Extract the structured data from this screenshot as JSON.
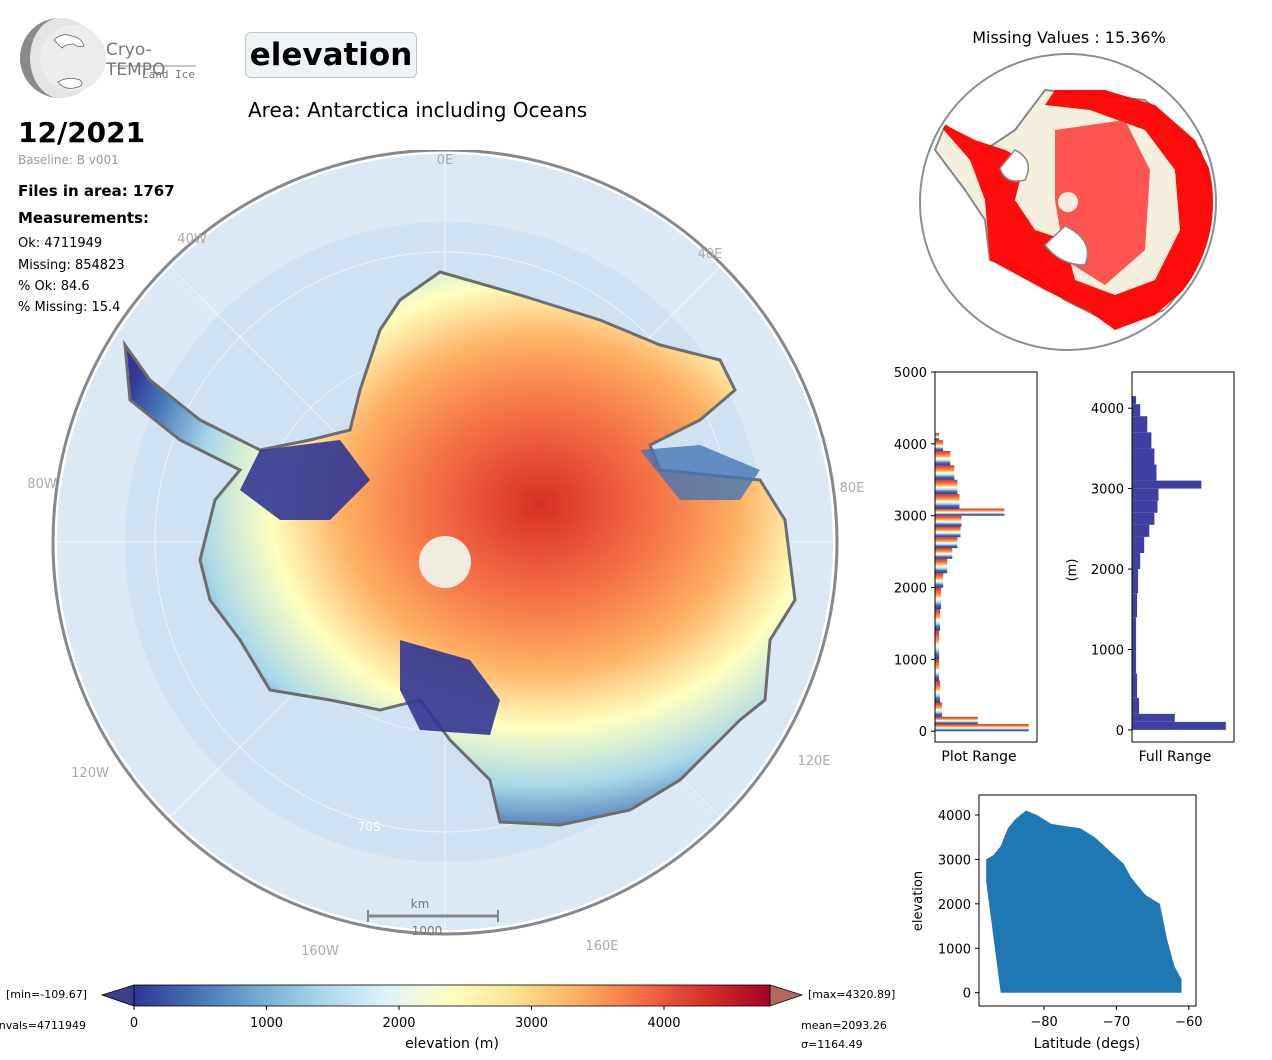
{
  "logo": {
    "brand": "Cryo-TEMPO",
    "subtitle": "Land Ice"
  },
  "parameter": "elevation",
  "area_title": "Area: Antarctica including Oceans",
  "date": "12/2021",
  "baseline": "Baseline: B v001",
  "files_in_area": "Files in area: 1767",
  "measurements_heading": "Measurements:",
  "stats": {
    "ok": "Ok: 4711949",
    "missing": "Missing: 854823",
    "pct_ok": "% Ok: 84.6",
    "pct_missing": "% Missing: 15.4"
  },
  "map": {
    "lon_labels": {
      "l0E": "0E",
      "l40W": "40W",
      "l40E": "40E",
      "l80W": "80W",
      "l80E": "80E",
      "l120W": "120W",
      "l120E": "120E",
      "l160W": "160W",
      "l160E": "160E"
    },
    "lat_label": "70S",
    "scale_unit": "km",
    "scale_value": "1000"
  },
  "missing_map": {
    "title": "Missing Values : 15.36%"
  },
  "colorbar": {
    "min_label": "[min=-109.67]",
    "max_label": "[max=4320.89]",
    "nvals_label": "nvals=4711949",
    "mean_label": "mean=2093.26",
    "sigma_label": "σ=1164.49",
    "xlabel": "elevation (m)",
    "ticks": [
      "0",
      "1000",
      "2000",
      "3000",
      "4000"
    ],
    "colors": [
      "#313695",
      "#4575b4",
      "#74add1",
      "#abd9e9",
      "#e0f3f8",
      "#ffffbf",
      "#fee090",
      "#fdae61",
      "#f46d43",
      "#d73027",
      "#a50026"
    ]
  },
  "chart_data": [
    {
      "type": "bar",
      "title": "",
      "xlabel": "Plot Range",
      "ylabel": "",
      "ylim": [
        -150,
        5000
      ],
      "yticks": [
        0,
        1000,
        2000,
        3000,
        4000,
        5000
      ],
      "bins": [
        [
          0,
          0.92
        ],
        [
          100,
          0.42
        ],
        [
          200,
          0.07
        ],
        [
          400,
          0.05
        ],
        [
          700,
          0.04
        ],
        [
          1000,
          0.04
        ],
        [
          1400,
          0.05
        ],
        [
          1700,
          0.06
        ],
        [
          2000,
          0.08
        ],
        [
          2200,
          0.12
        ],
        [
          2400,
          0.17
        ],
        [
          2550,
          0.22
        ],
        [
          2700,
          0.25
        ],
        [
          2850,
          0.26
        ],
        [
          3000,
          0.68
        ],
        [
          3100,
          0.24
        ],
        [
          3300,
          0.22
        ],
        [
          3500,
          0.19
        ],
        [
          3700,
          0.15
        ],
        [
          3900,
          0.08
        ],
        [
          4050,
          0.04
        ]
      ]
    },
    {
      "type": "bar",
      "title": "",
      "xlabel": "Full Range",
      "ylabel": "(m)",
      "ylim": [
        -150,
        4450
      ],
      "yticks": [
        0,
        1000,
        2000,
        3000,
        4000
      ],
      "bins": [
        [
          0,
          0.92
        ],
        [
          100,
          0.42
        ],
        [
          200,
          0.07
        ],
        [
          400,
          0.05
        ],
        [
          700,
          0.04
        ],
        [
          1000,
          0.04
        ],
        [
          1400,
          0.05
        ],
        [
          1700,
          0.06
        ],
        [
          2000,
          0.08
        ],
        [
          2200,
          0.12
        ],
        [
          2400,
          0.17
        ],
        [
          2550,
          0.22
        ],
        [
          2700,
          0.25
        ],
        [
          2850,
          0.26
        ],
        [
          3000,
          0.68
        ],
        [
          3100,
          0.24
        ],
        [
          3300,
          0.22
        ],
        [
          3500,
          0.19
        ],
        [
          3700,
          0.15
        ],
        [
          3900,
          0.08
        ],
        [
          4050,
          0.04
        ]
      ]
    },
    {
      "type": "scatter",
      "title": "",
      "xlabel": "Latitude (degs)",
      "ylabel": "elevation",
      "xlim": [
        -89,
        -59
      ],
      "ylim": [
        -300,
        4450
      ],
      "xticks": [
        -80,
        -70,
        -60
      ],
      "yticks": [
        0,
        1000,
        2000,
        3000,
        4000
      ],
      "upper_envelope": [
        [
          -88,
          3000
        ],
        [
          -87,
          3100
        ],
        [
          -86,
          3300
        ],
        [
          -85,
          3700
        ],
        [
          -84,
          3900
        ],
        [
          -82.5,
          4100
        ],
        [
          -81,
          4000
        ],
        [
          -79,
          3800
        ],
        [
          -77,
          3750
        ],
        [
          -75,
          3700
        ],
        [
          -73,
          3500
        ],
        [
          -71,
          3200
        ],
        [
          -69,
          2900
        ],
        [
          -68,
          2600
        ],
        [
          -67,
          2400
        ],
        [
          -66,
          2200
        ],
        [
          -65,
          2100
        ],
        [
          -64,
          2000
        ],
        [
          -63,
          1200
        ],
        [
          -62,
          600
        ],
        [
          -61,
          300
        ]
      ],
      "lower_envelope": [
        [
          -88,
          2500
        ],
        [
          -86,
          0
        ],
        [
          -61,
          0
        ]
      ]
    }
  ]
}
